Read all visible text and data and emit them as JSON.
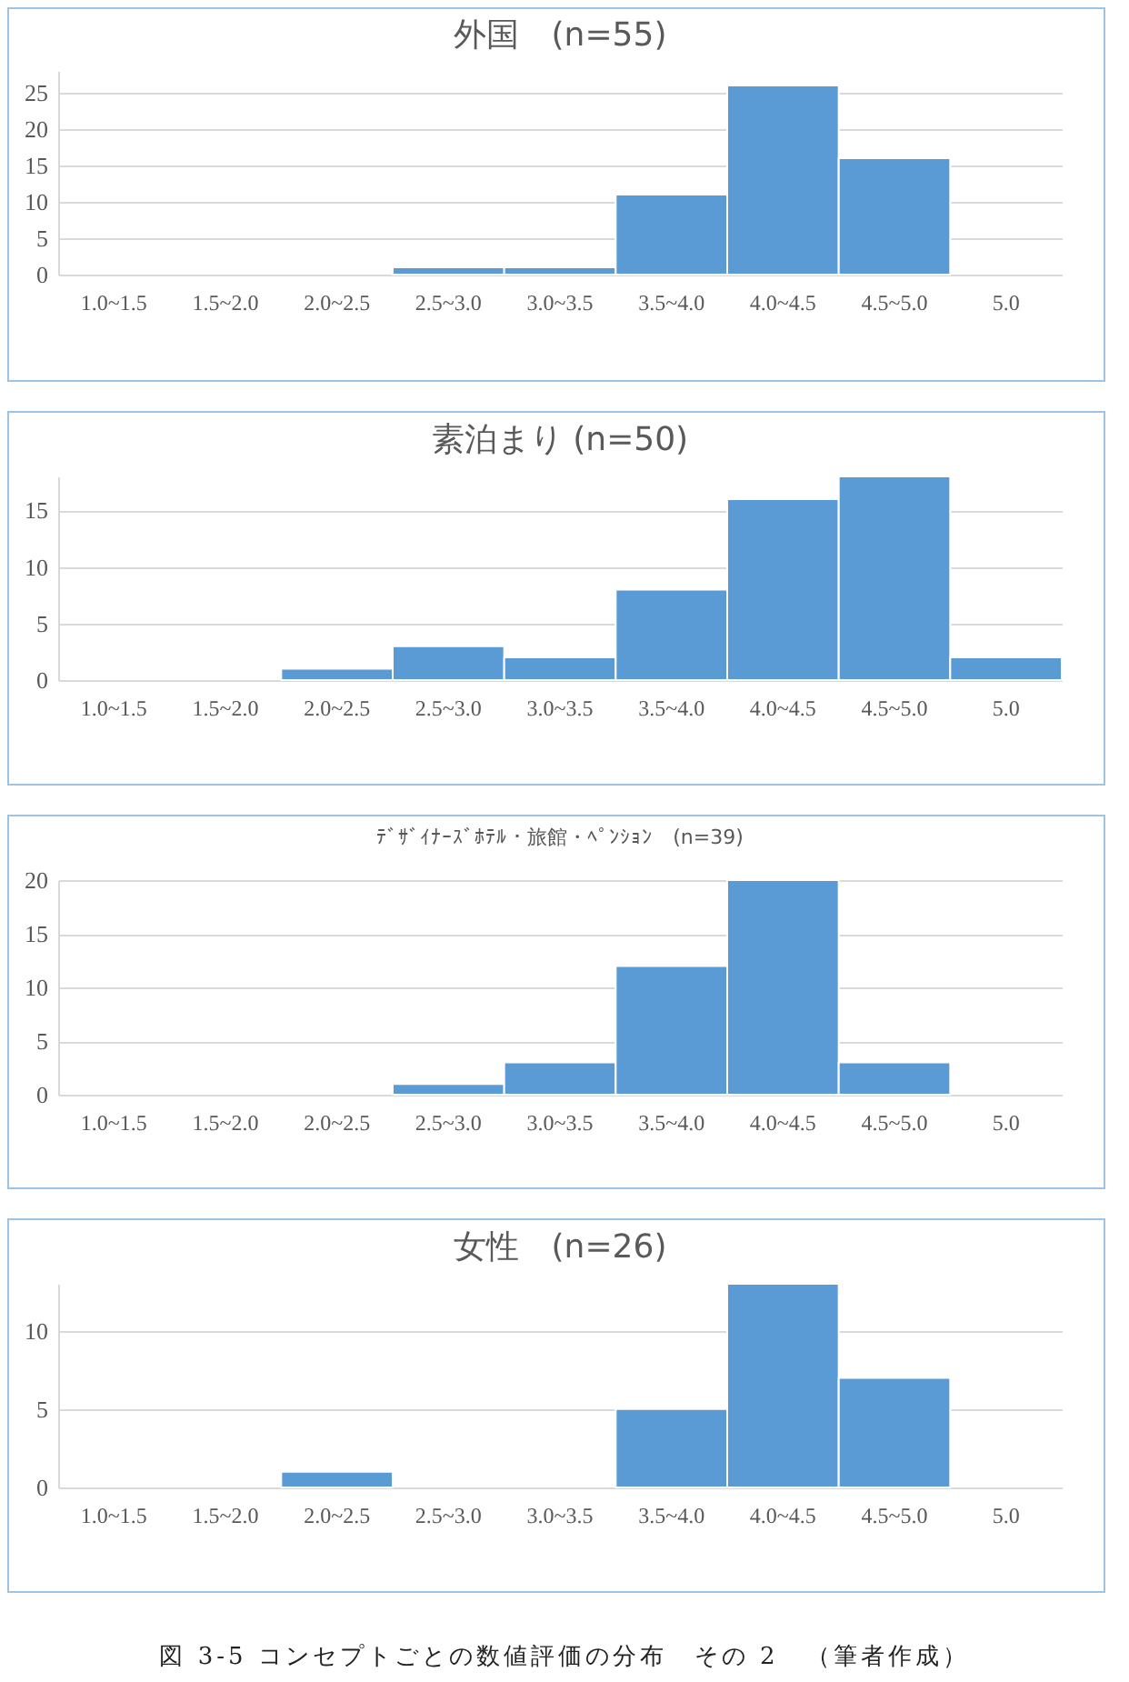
{
  "chart_data": [
    {
      "type": "bar",
      "title": "外国　(n=55)",
      "categories": [
        "1.0~1.5",
        "1.5~2.0",
        "2.0~2.5",
        "2.5~3.0",
        "3.0~3.5",
        "3.5~4.0",
        "4.0~4.5",
        "4.5~5.0",
        "5.0"
      ],
      "values": [
        0,
        0,
        0,
        1,
        1,
        11,
        26,
        16,
        0
      ],
      "color": "#5b9bd5",
      "ylim": [
        0,
        28
      ],
      "yticks": [
        0,
        5,
        10,
        15,
        20,
        25
      ],
      "grid": "y"
    },
    {
      "type": "bar",
      "title": "素泊まり (n=50)",
      "categories": [
        "1.0~1.5",
        "1.5~2.0",
        "2.0~2.5",
        "2.5~3.0",
        "3.0~3.5",
        "3.5~4.0",
        "4.0~4.5",
        "4.5~5.0",
        "5.0"
      ],
      "values": [
        0,
        0,
        1,
        3,
        2,
        8,
        16,
        18,
        2
      ],
      "color": "#5b9bd5",
      "ylim": [
        0,
        18
      ],
      "yticks": [
        0,
        5,
        10,
        15
      ],
      "grid": "y"
    },
    {
      "type": "bar",
      "title": "ﾃﾞｻﾞｲﾅｰｽﾞﾎﾃﾙ・旅館・ﾍﾟﾝｼｮﾝ　(n=39)",
      "categories": [
        "1.0~1.5",
        "1.5~2.0",
        "2.0~2.5",
        "2.5~3.0",
        "3.0~3.5",
        "3.5~4.0",
        "4.0~4.5",
        "4.5~5.0",
        "5.0"
      ],
      "values": [
        0,
        0,
        0,
        1,
        3,
        12,
        20,
        3,
        0
      ],
      "color": "#5b9bd5",
      "ylim": [
        0,
        20
      ],
      "yticks": [
        0,
        5,
        10,
        15,
        20
      ],
      "grid": "y"
    },
    {
      "type": "bar",
      "title": "女性　(n=26)",
      "categories": [
        "1.0~1.5",
        "1.5~2.0",
        "2.0~2.5",
        "2.5~3.0",
        "3.0~3.5",
        "3.5~4.0",
        "4.0~4.5",
        "4.5~5.0",
        "5.0"
      ],
      "values": [
        0,
        0,
        1,
        0,
        0,
        5,
        13,
        7,
        0
      ],
      "color": "#5b9bd5",
      "ylim": [
        0,
        13
      ],
      "yticks": [
        0,
        5,
        10
      ],
      "grid": "y",
      "annotations": [
        "図 3-5 コンセプトごとの数値評価の分布　その 2　（筆者作成）"
      ]
    }
  ]
}
